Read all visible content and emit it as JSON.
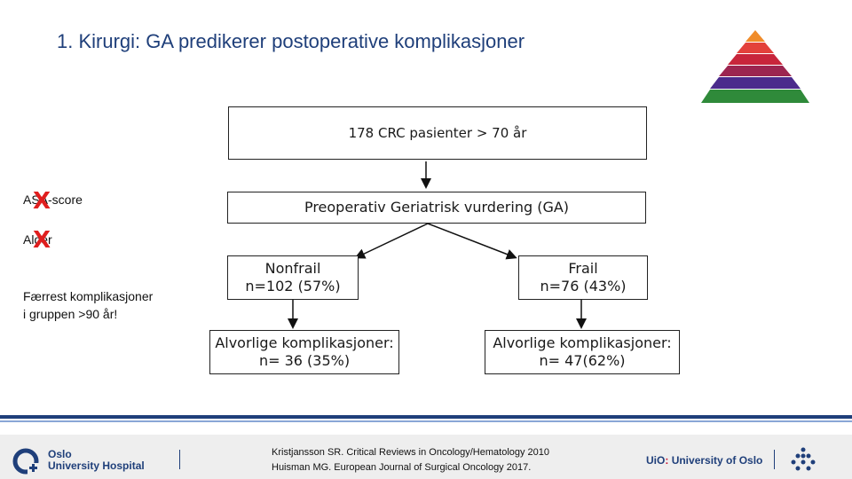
{
  "title": "1. Kirurgi: GA predikerer postoperative komplikasjoner",
  "pyramid_image": "pyramid-of-evidence",
  "boxes": {
    "top": "178 CRC pasienter > 70 år",
    "ga": "Preoperativ Geriatrisk vurdering (GA)",
    "nonfrail_line1": "Nonfrail",
    "nonfrail_line2": "n=102 (57%)",
    "frail_line1": "Frail",
    "frail_line2": "n=76 (43%)",
    "nonfrail_outcome_line1": "Alvorlige komplikasjoner:",
    "nonfrail_outcome_line2": "n= 36 (35%)",
    "frail_outcome_line1": "Alvorlige komplikasjoner:",
    "frail_outcome_line2": "n= 47(62%)"
  },
  "side": {
    "asa": "ASA-score",
    "alder": "Alder",
    "x_mark": "X",
    "note_line1": "Færrest komplikasjoner",
    "note_line2": "i gruppen >90 år!"
  },
  "footer": {
    "hospital_line1": "Oslo",
    "hospital_line2": "University Hospital",
    "ref1": "Kristjansson SR. Critical Reviews in Oncology/Hematology 2010",
    "ref2": "Huisman MG. European Journal of Surgical Oncology 2017.",
    "uio_prefix": "UiO",
    "uio_dot": ":",
    "uio_name": "University of Oslo"
  },
  "colors": {
    "title": "#1f3f7a",
    "x_mark": "#e01e1e",
    "footer_bar": "#1f3f7a"
  }
}
